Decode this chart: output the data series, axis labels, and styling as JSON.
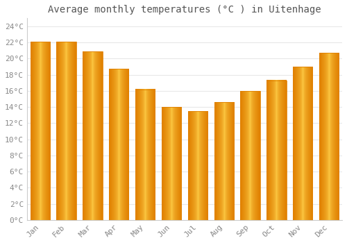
{
  "title": "Average monthly temperatures (°C ) in Uitenhage",
  "months": [
    "Jan",
    "Feb",
    "Mar",
    "Apr",
    "May",
    "Jun",
    "Jul",
    "Aug",
    "Sep",
    "Oct",
    "Nov",
    "Dec"
  ],
  "values": [
    22.1,
    22.1,
    20.9,
    18.7,
    16.2,
    14.0,
    13.5,
    14.6,
    16.0,
    17.3,
    19.0,
    20.7
  ],
  "bar_color_center": "#FFD04A",
  "bar_color_edge": "#E08000",
  "ylim": [
    0,
    25
  ],
  "yticks": [
    0,
    2,
    4,
    6,
    8,
    10,
    12,
    14,
    16,
    18,
    20,
    22,
    24
  ],
  "ytick_labels": [
    "0°C",
    "2°C",
    "4°C",
    "6°C",
    "8°C",
    "10°C",
    "12°C",
    "14°C",
    "16°C",
    "18°C",
    "20°C",
    "22°C",
    "24°C"
  ],
  "background_color": "#FFFFFF",
  "grid_color": "#E8E8E8",
  "title_fontsize": 10,
  "tick_fontsize": 8,
  "font_family": "monospace",
  "tick_color": "#888888",
  "title_color": "#555555"
}
